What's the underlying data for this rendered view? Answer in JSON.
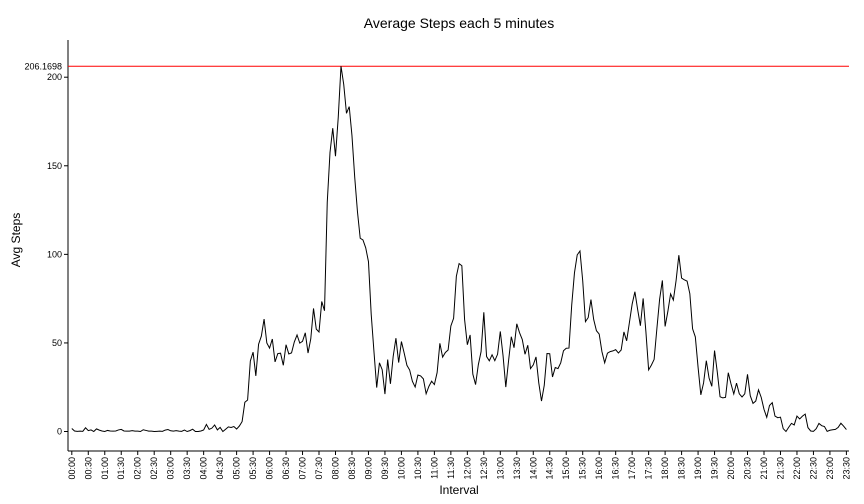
{
  "chart_data": {
    "type": "line",
    "title": "Average Steps each 5 minutes",
    "xlabel": "Interval",
    "ylabel": "Avg Steps",
    "ylim": [
      -11,
      221
    ],
    "y_ticks": [
      0,
      50,
      100,
      150,
      200
    ],
    "grid": false,
    "legend": "none",
    "line_color": "#000000",
    "reference_line": {
      "value": 206.1698,
      "label": "206.1698",
      "color": "#ff0000"
    },
    "x_tick_labels": [
      "00:00",
      "00:30",
      "01:00",
      "01:30",
      "02:00",
      "02:30",
      "03:00",
      "03:30",
      "04:00",
      "04:30",
      "05:00",
      "05:30",
      "06:00",
      "06:30",
      "07:00",
      "07:30",
      "08:00",
      "08:30",
      "09:00",
      "09:30",
      "10:00",
      "10:30",
      "11:00",
      "11:30",
      "12:00",
      "12:30",
      "13:00",
      "13:30",
      "14:00",
      "14:30",
      "15:00",
      "15:30",
      "16:00",
      "16:30",
      "17:00",
      "17:30",
      "18:00",
      "18:30",
      "19:00",
      "19:30",
      "20:00",
      "20:30",
      "21:00",
      "21:30",
      "22:00",
      "22:30",
      "23:00",
      "23:30"
    ],
    "series": [
      {
        "interval_minutes": 5,
        "values": [
          1.7,
          0.3,
          0.1,
          0.2,
          0.1,
          2.1,
          0.5,
          0.9,
          0.0,
          1.5,
          0.8,
          0.3,
          0.0,
          0.6,
          0.3,
          0.2,
          0.3,
          0.9,
          1.2,
          0.3,
          0.2,
          0.2,
          0.5,
          0.2,
          0.2,
          0.0,
          1.0,
          0.6,
          0.2,
          0.2,
          0.0,
          0.1,
          0.2,
          0.1,
          0.8,
          1.1,
          0.4,
          0.2,
          0.5,
          0.2,
          0.1,
          0.8,
          0.0,
          0.5,
          1.3,
          0.0,
          0.0,
          0.3,
          0.9,
          4.0,
          1.2,
          1.9,
          3.7,
          0.9,
          2.3,
          0.0,
          1.3,
          2.6,
          2.3,
          2.8,
          1.4,
          3.1,
          5.6,
          16.5,
          17.8,
          39.8,
          44.8,
          31.4,
          49.3,
          53.8,
          63.5,
          50.0,
          47.1,
          52.2,
          39.3,
          44.0,
          44.2,
          37.4,
          49.0,
          43.8,
          44.4,
          50.5,
          54.5,
          49.9,
          50.9,
          55.7,
          44.3,
          52.3,
          69.5,
          57.8,
          56.2,
          73.4,
          68.2,
          129.4,
          157.5,
          171.2,
          155.4,
          177.3,
          206.2,
          195.9,
          179.6,
          183.4,
          167.0,
          143.5,
          124.0,
          109.1,
          108.1,
          103.7,
          95.9,
          66.2,
          45.2,
          24.8,
          38.8,
          34.9,
          21.1,
          40.6,
          26.9,
          42.4,
          52.7,
          38.9,
          50.8,
          44.3,
          37.4,
          34.7,
          28.3,
          25.1,
          31.9,
          31.4,
          29.7,
          21.3,
          25.5,
          28.4,
          26.5,
          33.3,
          49.8,
          42.0,
          44.6,
          46.0,
          59.6,
          63.9,
          87.6,
          94.8,
          93.6,
          63.2,
          49.0,
          54.5,
          32.4,
          26.5,
          37.7,
          45.1,
          67.3,
          42.3,
          39.9,
          43.3,
          40.0,
          43.6,
          56.5,
          42.8,
          25.1,
          39.8,
          53.5,
          47.3,
          60.8,
          55.8,
          51.9,
          43.6,
          48.7,
          35.5,
          37.6,
          42.1,
          27.5,
          17.2,
          26.1,
          44.0,
          43.9,
          30.8,
          36.1,
          35.5,
          38.8,
          45.6,
          47.0,
          47.1,
          71.4,
          89.6,
          99.7,
          101.9,
          85.1,
          62.0,
          64.3,
          74.5,
          63.2,
          56.9,
          55.0,
          45.1,
          38.8,
          44.2,
          45.1,
          45.5,
          46.2,
          44.3,
          46.0,
          56.2,
          51.2,
          61.5,
          71.9,
          78.9,
          68.9,
          59.7,
          75.1,
          56.5,
          34.8,
          37.5,
          40.7,
          58.0,
          74.7,
          85.3,
          59.3,
          67.8,
          77.7,
          74.2,
          85.3,
          99.5,
          86.6,
          85.6,
          84.9,
          77.8,
          58.0,
          53.4,
          36.3,
          20.7,
          27.4,
          40.0,
          30.2,
          25.5,
          45.7,
          33.5,
          19.6,
          19.0,
          19.3,
          33.2,
          26.8,
          21.2,
          27.3,
          21.3,
          19.5,
          21.3,
          32.3,
          20.2,
          15.9,
          17.2,
          23.5,
          19.2,
          12.5,
          8.0,
          14.7,
          16.3,
          8.7,
          7.8,
          8.1,
          1.6,
          0.0,
          2.4,
          4.6,
          3.7,
          8.7,
          7.1,
          8.7,
          9.8,
          2.2,
          0.3,
          0.1,
          1.6,
          4.6,
          3.3,
          2.8,
          0.1,
          0.7,
          1.0,
          1.2,
          2.3,
          4.7,
          3.0,
          1.1
        ]
      }
    ]
  }
}
